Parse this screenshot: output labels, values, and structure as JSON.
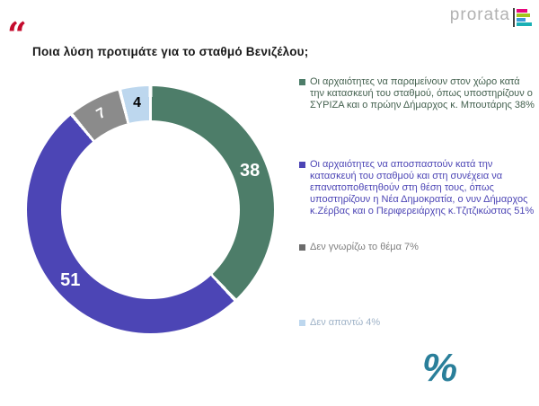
{
  "header": {
    "quote_mark": "“",
    "quote_color": "#c40b2d",
    "title": "Ποια λύση προτιμάτε για το σταθμό Βενιζέλου;",
    "logo": {
      "text": "prorata",
      "bars": [
        {
          "name": "magenta-bar",
          "color": "#e7077e",
          "width": 12
        },
        {
          "name": "green-bar",
          "color": "#a3c61d",
          "width": 15
        },
        {
          "name": "blue-bar",
          "color": "#3b9ad8",
          "width": 10
        },
        {
          "name": "teal-bar",
          "color": "#1ab0b5",
          "width": 17
        }
      ]
    }
  },
  "chart_data": {
    "type": "pie",
    "subtype": "donut",
    "title": "Ποια λύση προτιμάτε για το σταθμό Βενιζέλου;",
    "categories": [
      "Οι αρχαιότητες να παραμείνουν στον χώρο κατά την κατασκευή του σταθμού, όπως υποστηρίζουν ο ΣΥΡΙΖΑ και ο πρώην Δήμαρχος κ. Μπουτάρης",
      "Οι αρχαιότητες να αποσπαστούν κατά την κατασκευή του σταθμού και στη συνέχεια να επανατοποθετηθούν στη θέση τους, όπως υποστηρίζουν η Νέα Δημοκρατία, ο νυν Δήμαρχος κ.Ζέρβας και ο Περιφερειάρχης κ.Τζιτζικώστας",
      "Δεν γνωρίζω το θέμα",
      "Δεν απαντώ"
    ],
    "values": [
      38,
      51,
      7,
      4
    ],
    "labels": [
      "38",
      "51",
      "7",
      "4"
    ],
    "colors": [
      "#4d7d69",
      "#4c45b5",
      "#8b8b8b",
      "#bdd7ee"
    ],
    "label_colors": [
      "#ffffff",
      "#ffffff",
      "#ffffff",
      "#000000"
    ],
    "label_rotations": [
      0,
      0,
      -30,
      0
    ],
    "start_angle_deg": 0,
    "direction": "clockwise",
    "legend_position": "right",
    "unit": "%"
  },
  "legend": {
    "items": [
      {
        "label": "Οι αρχαιότητες να παραμείνουν στον χώρο κατά την κατασκευή του σταθμού, όπως υποστηρίζουν ο ΣΥΡΙΖΑ και ο πρώην Δήμαρχος κ. Μπουτάρης 38%",
        "marker_color": "#4d7d69",
        "text_color": "#44614f"
      },
      {
        "label": "Οι αρχαιότητες να αποσπαστούν κατά την κατασκευή του σταθμού και στη συνέχεια να επανατοποθετηθούν στη θέση τους, όπως υποστηρίζουν η Νέα Δημοκρατία, ο νυν Δήμαρχος κ.Ζέρβας και ο Περιφερειάρχης κ.Τζιτζικώστας 51%",
        "marker_color": "#4c45b5",
        "text_color": "#4c45b5"
      },
      {
        "label": "Δεν γνωρίζω το θέμα 7%",
        "marker_color": "#6b6b6b",
        "text_color": "#7f7f7f"
      },
      {
        "label": "Δεν απαντώ 4%",
        "marker_color": "#bdd7ee",
        "text_color": "#9fb3c8"
      }
    ]
  },
  "footer": {
    "percent_mark": "%",
    "percent_color": "#2a7f9a"
  }
}
